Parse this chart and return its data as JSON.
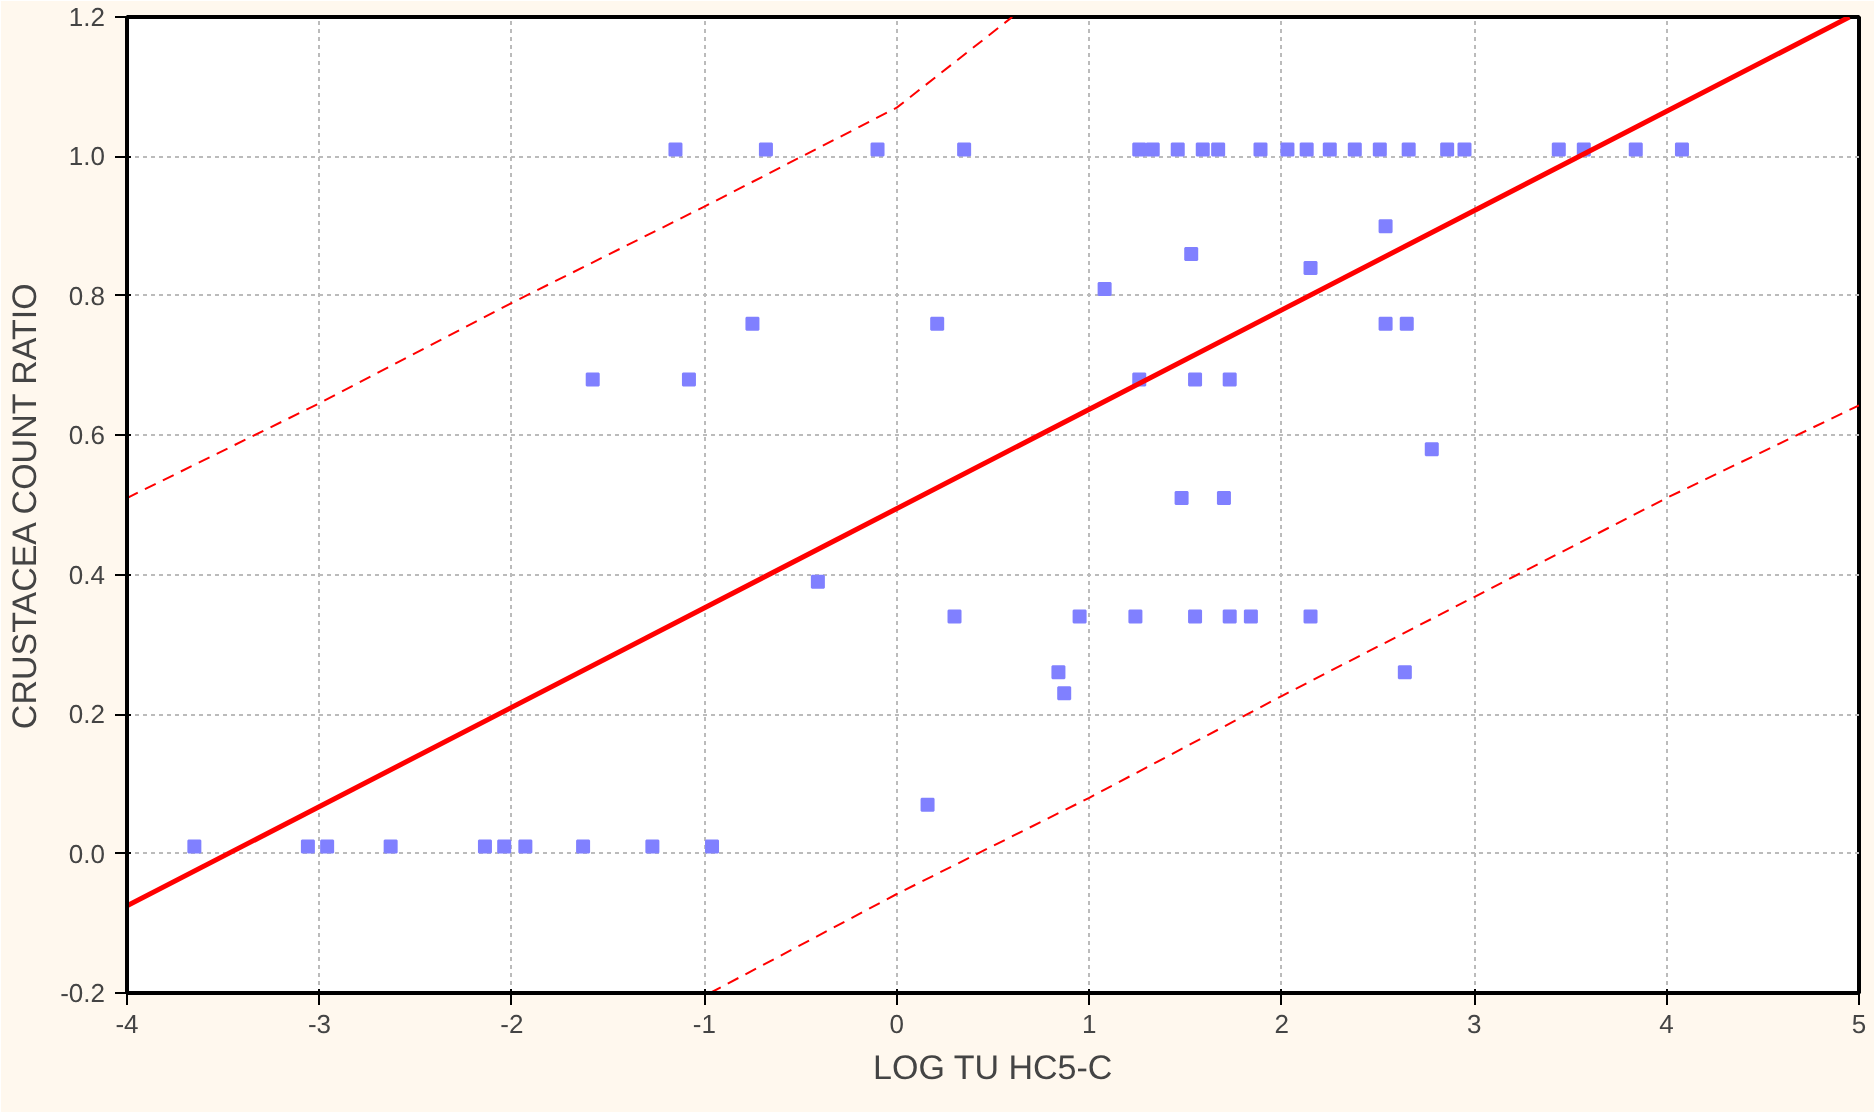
{
  "chart_data": {
    "type": "scatter",
    "xlabel": "LOG TU HC5-C",
    "ylabel": "CRUSTACEA COUNT RATIO",
    "xlim": [
      -4,
      5
    ],
    "ylim": [
      -0.2,
      1.2
    ],
    "xticks": [
      -4,
      -3,
      -2,
      -1,
      0,
      1,
      2,
      3,
      4,
      5
    ],
    "yticks": [
      {
        "value": -0.2,
        "label": "-0.2"
      },
      {
        "value": 0,
        "label": "0.0"
      },
      {
        "value": 0.2,
        "label": "0.2"
      },
      {
        "value": 0.4,
        "label": "0.4"
      },
      {
        "value": 0.6,
        "label": "0.6"
      },
      {
        "value": 0.8,
        "label": "0.8"
      },
      {
        "value": 1.0,
        "label": "1.0"
      },
      {
        "value": 1.2,
        "label": "1.2"
      }
    ],
    "grid": true,
    "series": [
      {
        "marker": "square",
        "color": "#8080ff",
        "x": [
          -1.15,
          -0.68,
          -0.1,
          0.35,
          1.26,
          1.33,
          1.46,
          1.59,
          1.67,
          1.89,
          2.03,
          2.13,
          2.25,
          2.38,
          2.51,
          2.66,
          2.86,
          2.95,
          3.44,
          3.57,
          3.84,
          4.08,
          2.54,
          1.53,
          2.15,
          1.08,
          -0.75,
          0.21,
          2.54,
          2.65,
          -1.58,
          -1.08,
          1.26,
          1.55,
          1.73,
          1.48,
          1.7,
          2.78,
          -0.41,
          0.3,
          0.95,
          1.24,
          1.55,
          1.73,
          1.84,
          2.15,
          0.84,
          2.64,
          0.87,
          0.16,
          -3.65,
          -3.06,
          -2.96,
          -2.63,
          -2.14,
          -2.04,
          -1.93,
          -1.63,
          -1.27,
          -0.96
        ],
        "values": [
          1.01,
          1.01,
          1.01,
          1.01,
          1.01,
          1.01,
          1.01,
          1.01,
          1.01,
          1.01,
          1.01,
          1.01,
          1.01,
          1.01,
          1.01,
          1.01,
          1.01,
          1.01,
          1.01,
          1.01,
          1.01,
          1.01,
          0.9,
          0.86,
          0.84,
          0.81,
          0.76,
          0.76,
          0.76,
          0.76,
          0.68,
          0.68,
          0.68,
          0.68,
          0.68,
          0.51,
          0.51,
          0.58,
          0.39,
          0.34,
          0.34,
          0.34,
          0.34,
          0.34,
          0.34,
          0.34,
          0.26,
          0.26,
          0.23,
          0.07,
          0.01,
          0.01,
          0.01,
          0.01,
          0.01,
          0.01,
          0.01,
          0.01,
          0.01,
          0.01
        ]
      },
      {
        "type": "line",
        "line_style": "solid",
        "color": "#ff0000",
        "x": [
          -4,
          4.95
        ],
        "values": [
          -0.075,
          1.2
        ]
      },
      {
        "type": "line",
        "line_style": "dashed",
        "color": "#ff0000",
        "x": [
          -4,
          -3,
          -2,
          -1,
          0,
          0.6
        ],
        "values": [
          0.51,
          0.646,
          0.79,
          0.928,
          1.07,
          1.2
        ]
      },
      {
        "type": "line",
        "line_style": "dashed",
        "color": "#ff0000",
        "x": [
          -0.97,
          0,
          1,
          2,
          3,
          4,
          5
        ],
        "values": [
          -0.2,
          -0.058,
          0.08,
          0.226,
          0.368,
          0.51,
          0.643
        ]
      }
    ]
  }
}
